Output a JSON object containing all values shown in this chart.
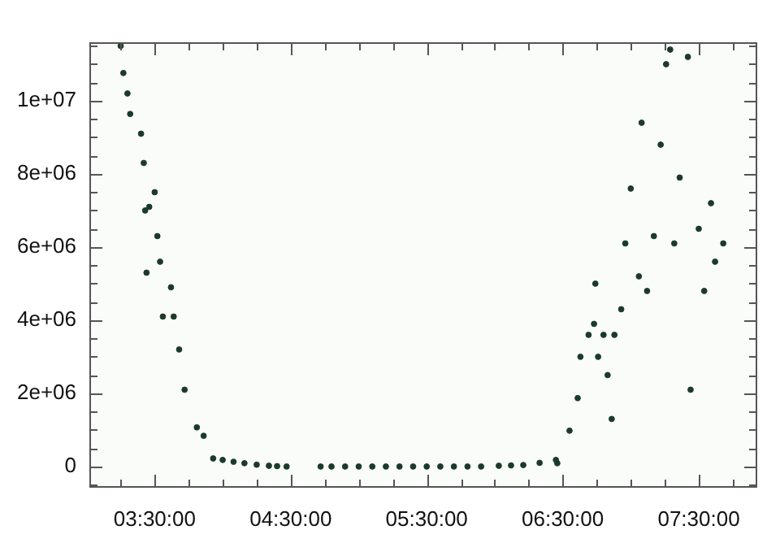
{
  "chart_data": {
    "type": "scatter",
    "marker": "circle",
    "grid": false,
    "series": [
      {
        "color": "#1c3a2a",
        "x": [
          3.25,
          3.27,
          3.3,
          3.32,
          3.4,
          3.42,
          3.43,
          3.44,
          3.46,
          3.5,
          3.52,
          3.54,
          3.56,
          3.62,
          3.64,
          3.68,
          3.72,
          3.81,
          3.86,
          3.93,
          4.0,
          4.08,
          4.16,
          4.25,
          4.34,
          4.4,
          4.47,
          4.72,
          4.8,
          4.9,
          5.0,
          5.1,
          5.2,
          5.3,
          5.4,
          5.5,
          5.6,
          5.7,
          5.8,
          5.9,
          6.03,
          6.12,
          6.21,
          6.33,
          6.45,
          6.46,
          6.55,
          6.61,
          6.63,
          6.69,
          6.73,
          6.74,
          6.76,
          6.8,
          6.83,
          6.86,
          6.88,
          6.93,
          6.96,
          7.0,
          7.06,
          7.08,
          7.12,
          7.17,
          7.22,
          7.26,
          7.29,
          7.32,
          7.36,
          7.42,
          7.44,
          7.5,
          7.54,
          7.59,
          7.62,
          7.68
        ],
        "values": [
          11500000,
          10760000,
          10200000,
          9640000,
          9100000,
          8300000,
          7000000,
          5300000,
          7100000,
          7500000,
          6300000,
          5600000,
          4100000,
          4900000,
          4100000,
          3200000,
          2100000,
          1070000,
          840000,
          220000,
          180000,
          130000,
          90000,
          50000,
          20000,
          10000,
          0,
          0,
          0,
          0,
          0,
          0,
          0,
          0,
          0,
          0,
          0,
          0,
          0,
          0,
          20000,
          30000,
          40000,
          100000,
          180000,
          90000,
          980000,
          1870000,
          3000000,
          3600000,
          3900000,
          5000000,
          3000000,
          3600000,
          2500000,
          1300000,
          3600000,
          4300000,
          6100000,
          7600000,
          5200000,
          9400000,
          4800000,
          6300000,
          8800000,
          11000000,
          11400000,
          6100000,
          7900000,
          11200000,
          2100000,
          6500000,
          4800000,
          7200000,
          5600000,
          6100000
        ]
      }
    ],
    "xlim": [
      3.02,
      7.93
    ],
    "xticks": [
      {
        "value": 3.25,
        "label": null
      },
      {
        "value": 3.5,
        "label": "03:30:00"
      },
      {
        "value": 3.75,
        "label": null
      },
      {
        "value": 4.0,
        "label": null
      },
      {
        "value": 4.25,
        "label": null
      },
      {
        "value": 4.5,
        "label": "04:30:00"
      },
      {
        "value": 4.75,
        "label": null
      },
      {
        "value": 5.0,
        "label": null
      },
      {
        "value": 5.25,
        "label": null
      },
      {
        "value": 5.5,
        "label": "05:30:00"
      },
      {
        "value": 5.75,
        "label": null
      },
      {
        "value": 6.0,
        "label": null
      },
      {
        "value": 6.25,
        "label": null
      },
      {
        "value": 6.5,
        "label": "06:30:00"
      },
      {
        "value": 6.75,
        "label": null
      },
      {
        "value": 7.0,
        "label": null
      },
      {
        "value": 7.25,
        "label": null
      },
      {
        "value": 7.5,
        "label": "07:30:00"
      },
      {
        "value": 7.75,
        "label": null
      }
    ],
    "ylim": [
      -580000,
      11600000
    ],
    "yticks": [
      {
        "value": -500000,
        "label": null
      },
      0,
      {
        "value": 500000,
        "label": null
      },
      {
        "value": 1000000,
        "label": null
      },
      {
        "value": 1500000,
        "label": null
      },
      {
        "value": 2000000,
        "label": "2e+06"
      },
      {
        "value": 2500000,
        "label": null
      },
      {
        "value": 3000000,
        "label": null
      },
      {
        "value": 3500000,
        "label": null
      },
      {
        "value": 4000000,
        "label": "4e+06"
      },
      {
        "value": 4500000,
        "label": null
      },
      {
        "value": 5000000,
        "label": null
      },
      {
        "value": 5500000,
        "label": null
      },
      {
        "value": 6000000,
        "label": "6e+06"
      },
      {
        "value": 6500000,
        "label": null
      },
      {
        "value": 7000000,
        "label": null
      },
      {
        "value": 7500000,
        "label": null
      },
      {
        "value": 8000000,
        "label": "8e+06"
      },
      {
        "value": 8500000,
        "label": null
      },
      {
        "value": 9000000,
        "label": null
      },
      {
        "value": 9500000,
        "label": null
      },
      {
        "value": 10000000,
        "label": "1e+07"
      },
      {
        "value": 10500000,
        "label": null
      },
      {
        "value": 11000000,
        "label": null
      },
      {
        "value": 11500000,
        "label": null
      }
    ]
  }
}
